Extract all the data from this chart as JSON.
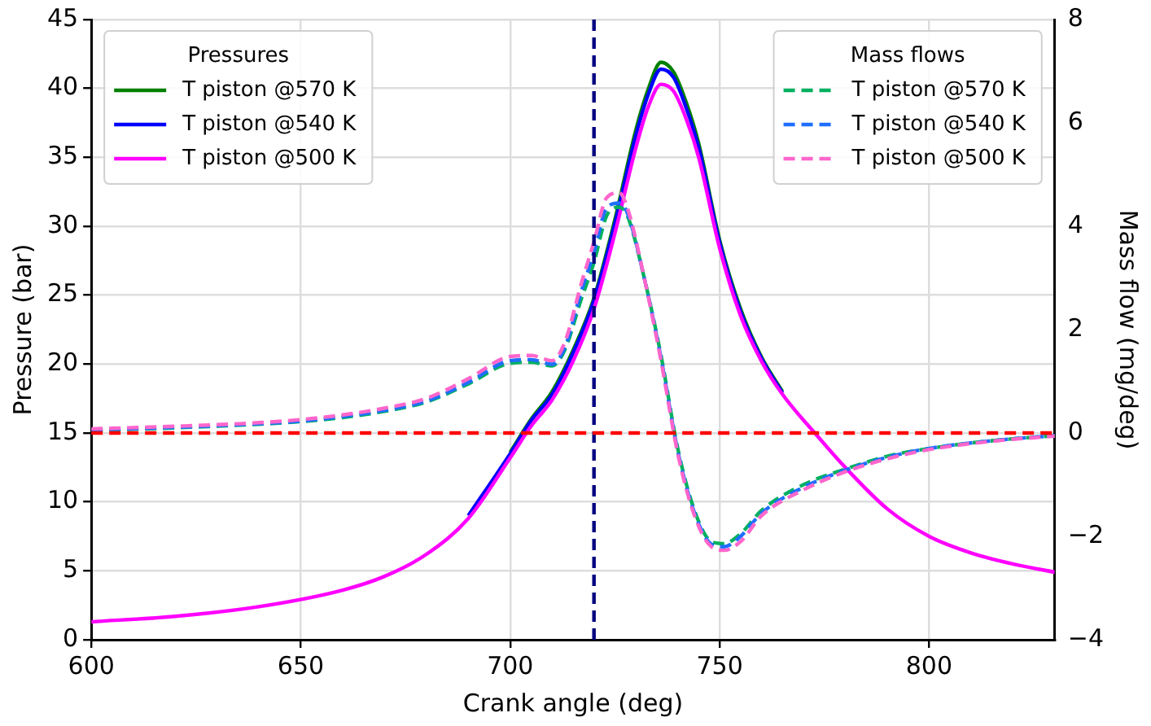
{
  "chart_data": {
    "type": "line",
    "xlabel": "Crank angle (deg)",
    "ylabel": "Pressure (bar)",
    "y2label": "Mass flow (mg/deg)",
    "legend_title": "Pressures",
    "annotations": [
      "Mass flows"
    ],
    "xlim": [
      600,
      830
    ],
    "xticks": [
      600,
      650,
      700,
      750,
      800
    ],
    "ylim": [
      0,
      45
    ],
    "yticks": [
      0,
      5,
      10,
      15,
      20,
      25,
      30,
      35,
      40,
      45
    ],
    "y2lim": [
      -4,
      8
    ],
    "y2ticks": [
      -4,
      -2,
      0,
      2,
      4,
      6,
      8
    ],
    "grid": true,
    "legend": "top",
    "marker": "none",
    "ref_lines": [
      {
        "axis": "x",
        "value": 720,
        "color": "#000080",
        "line_style": "dashed"
      },
      {
        "axis": "y2",
        "value": 0,
        "color": "#ff0000",
        "line_style": "dashed"
      }
    ],
    "series": [
      {
        "name": "T piston @570 K",
        "color": "#008000",
        "line_style": "solid",
        "x": [
          700,
          705,
          710,
          715,
          720,
          725,
          730,
          733,
          736,
          739,
          742,
          745,
          750,
          755,
          760,
          765
        ],
        "values": [
          13.6,
          16,
          18,
          21,
          24.8,
          30.5,
          37,
          40,
          41.9,
          41.2,
          39,
          36,
          29,
          24,
          20.5,
          18
        ]
      },
      {
        "name": "T piston @540 K",
        "color": "#0000ff",
        "line_style": "solid",
        "x": [
          690,
          700,
          705,
          710,
          715,
          720,
          725,
          730,
          733,
          736,
          739,
          742,
          745,
          750,
          755,
          760,
          765
        ],
        "values": [
          9,
          13.5,
          15.9,
          17.8,
          20.8,
          24.6,
          30.2,
          36.6,
          39.6,
          41.4,
          40.8,
          38.6,
          35.7,
          28.8,
          23.8,
          20.4,
          17.9
        ]
      },
      {
        "name": "T piston @500 K",
        "color": "#ff00ff",
        "line_style": "solid",
        "x": [
          600,
          620,
          640,
          660,
          670,
          680,
          690,
          700,
          705,
          710,
          715,
          720,
          725,
          730,
          733,
          736,
          739,
          742,
          745,
          750,
          755,
          760,
          765,
          773,
          780,
          790,
          800,
          810,
          820,
          830
        ],
        "values": [
          1.3,
          1.7,
          2.4,
          3.6,
          4.6,
          6.2,
          8.8,
          13.2,
          15.5,
          17.4,
          20.2,
          24,
          29.5,
          35.7,
          38.7,
          40.3,
          39.8,
          37.8,
          35,
          28.4,
          23.5,
          20.2,
          17.8,
          14.9,
          12.5,
          9.5,
          7.5,
          6.3,
          5.5,
          4.9
        ]
      },
      {
        "name": "T piston @570 K",
        "color": "#00b060",
        "line_style": "dashed",
        "axis": "y2",
        "x": [
          600,
          620,
          640,
          650,
          660,
          670,
          680,
          690,
          700,
          705,
          710,
          713,
          717,
          720,
          723,
          726,
          728,
          732,
          736,
          740,
          744,
          748,
          751,
          755,
          760,
          770,
          780,
          790,
          800,
          815,
          830
        ],
        "values": [
          0.05,
          0.1,
          0.17,
          0.22,
          0.3,
          0.42,
          0.6,
          0.95,
          1.35,
          1.37,
          1.3,
          1.6,
          2.6,
          3.3,
          4.2,
          4.37,
          4.2,
          3,
          1.5,
          -0.3,
          -1.5,
          -2.1,
          -2.14,
          -1.95,
          -1.5,
          -1,
          -0.7,
          -0.45,
          -0.3,
          -0.15,
          -0.05
        ]
      },
      {
        "name": "T piston @540 K",
        "color": "#1f6fff",
        "line_style": "dashed",
        "axis": "y2",
        "x": [
          600,
          620,
          640,
          650,
          660,
          670,
          680,
          690,
          700,
          705,
          710,
          713,
          717,
          720,
          723,
          726,
          728,
          732,
          736,
          740,
          744,
          748,
          751,
          755,
          760,
          770,
          780,
          790,
          800,
          815,
          830
        ],
        "values": [
          0.06,
          0.11,
          0.18,
          0.23,
          0.32,
          0.44,
          0.62,
          0.98,
          1.4,
          1.42,
          1.33,
          1.65,
          2.75,
          3.5,
          4.35,
          4.45,
          4.25,
          3,
          1.45,
          -0.35,
          -1.55,
          -2.15,
          -2.2,
          -2,
          -1.55,
          -1.05,
          -0.72,
          -0.47,
          -0.3,
          -0.15,
          -0.05
        ]
      },
      {
        "name": "T piston @500 K",
        "color": "#ff66cc",
        "line_style": "dashed",
        "axis": "y2",
        "x": [
          600,
          620,
          640,
          650,
          660,
          670,
          680,
          690,
          700,
          705,
          710,
          713,
          717,
          720,
          723,
          726,
          728,
          732,
          736,
          740,
          744,
          748,
          751,
          755,
          760,
          770,
          780,
          790,
          800,
          815,
          830
        ],
        "values": [
          0.08,
          0.13,
          0.2,
          0.26,
          0.35,
          0.48,
          0.67,
          1.05,
          1.48,
          1.5,
          1.4,
          1.75,
          2.9,
          3.7,
          4.55,
          4.65,
          4.35,
          3,
          1.4,
          -0.4,
          -1.6,
          -2.2,
          -2.27,
          -2.1,
          -1.6,
          -1.1,
          -0.75,
          -0.5,
          -0.32,
          -0.16,
          -0.06
        ]
      }
    ]
  }
}
